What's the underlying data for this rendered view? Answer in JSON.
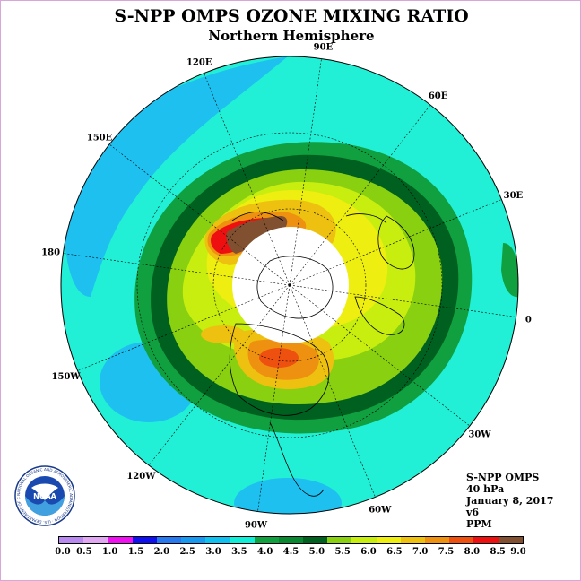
{
  "title": "S-NPP OMPS OZONE MIXING RATIO",
  "subtitle": "Northern Hemisphere",
  "longitude_labels": [
    "90E",
    "60E",
    "30E",
    "0",
    "30W",
    "60W",
    "90W",
    "120W",
    "150W",
    "180",
    "150E",
    "120E"
  ],
  "info": {
    "instrument": "S-NPP OMPS",
    "pressure": "40 hPa",
    "date": "January 8, 2017",
    "version": "v6",
    "units": "PPM"
  },
  "logo": {
    "text": "NOAA",
    "ring_text": "NATIONAL OCEANIC AND ATMOSPHERIC ADMINISTRATION · U.S. DEPARTMENT OF COMMERCE"
  },
  "colorbar": {
    "ticks": [
      "0.0",
      "0.5",
      "1.0",
      "1.5",
      "2.0",
      "2.5",
      "3.0",
      "3.5",
      "4.0",
      "4.5",
      "5.0",
      "5.5",
      "6.0",
      "6.5",
      "7.0",
      "7.5",
      "8.0",
      "8.5",
      "9.0"
    ],
    "colors": [
      "#b88aef",
      "#e0a8f0",
      "#ee10ee",
      "#1010ee",
      "#2878ee",
      "#1898ee",
      "#10c0ee",
      "#10eed8",
      "#10a040",
      "#088830",
      "#006020",
      "#88d010",
      "#c8ee10",
      "#eeee10",
      "#eec010",
      "#ee9010",
      "#ee5010",
      "#ee1010",
      "#805030"
    ]
  },
  "colors": {
    "background_field": "#22f0d6",
    "low_values": "#1ec0f0",
    "polar_night": "#ffffff"
  }
}
